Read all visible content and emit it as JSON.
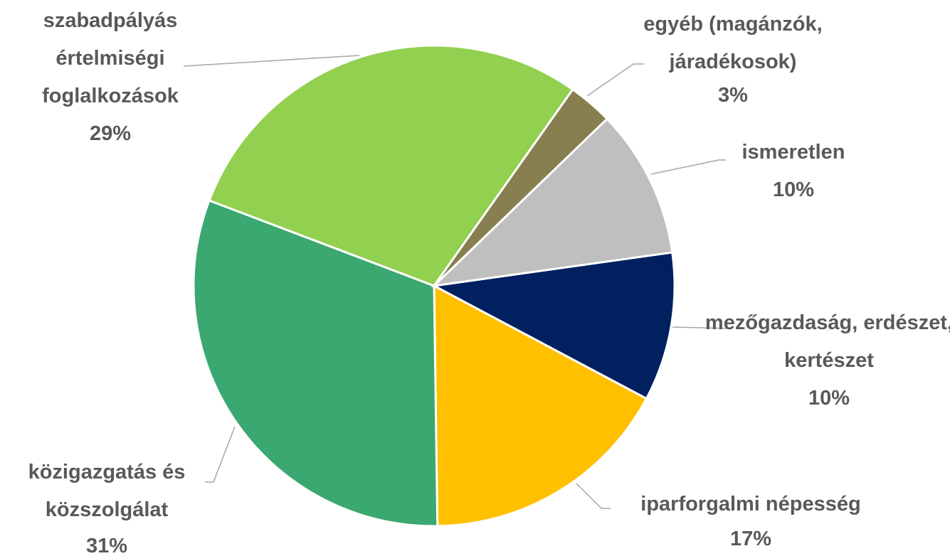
{
  "chart_data": {
    "type": "pie",
    "categories": [
      "mezőgazdaság, erdészet, kertészet",
      "iparforgalmi népesség",
      "közigazgatás és közszolgálat",
      "szabadpályás értelmiségi foglalkozások",
      "egyéb (magánzók, járadékosok)",
      "ismeretlen"
    ],
    "values": [
      10,
      17,
      31,
      29,
      3,
      10
    ],
    "value_labels": [
      "10%",
      "17%",
      "31%",
      "29%",
      "3%",
      "10%"
    ],
    "colors": [
      "#002060",
      "#ffc000",
      "#3aa870",
      "#92d050",
      "#877f4f",
      "#bfbfbf"
    ],
    "start_angle": 82
  }
}
